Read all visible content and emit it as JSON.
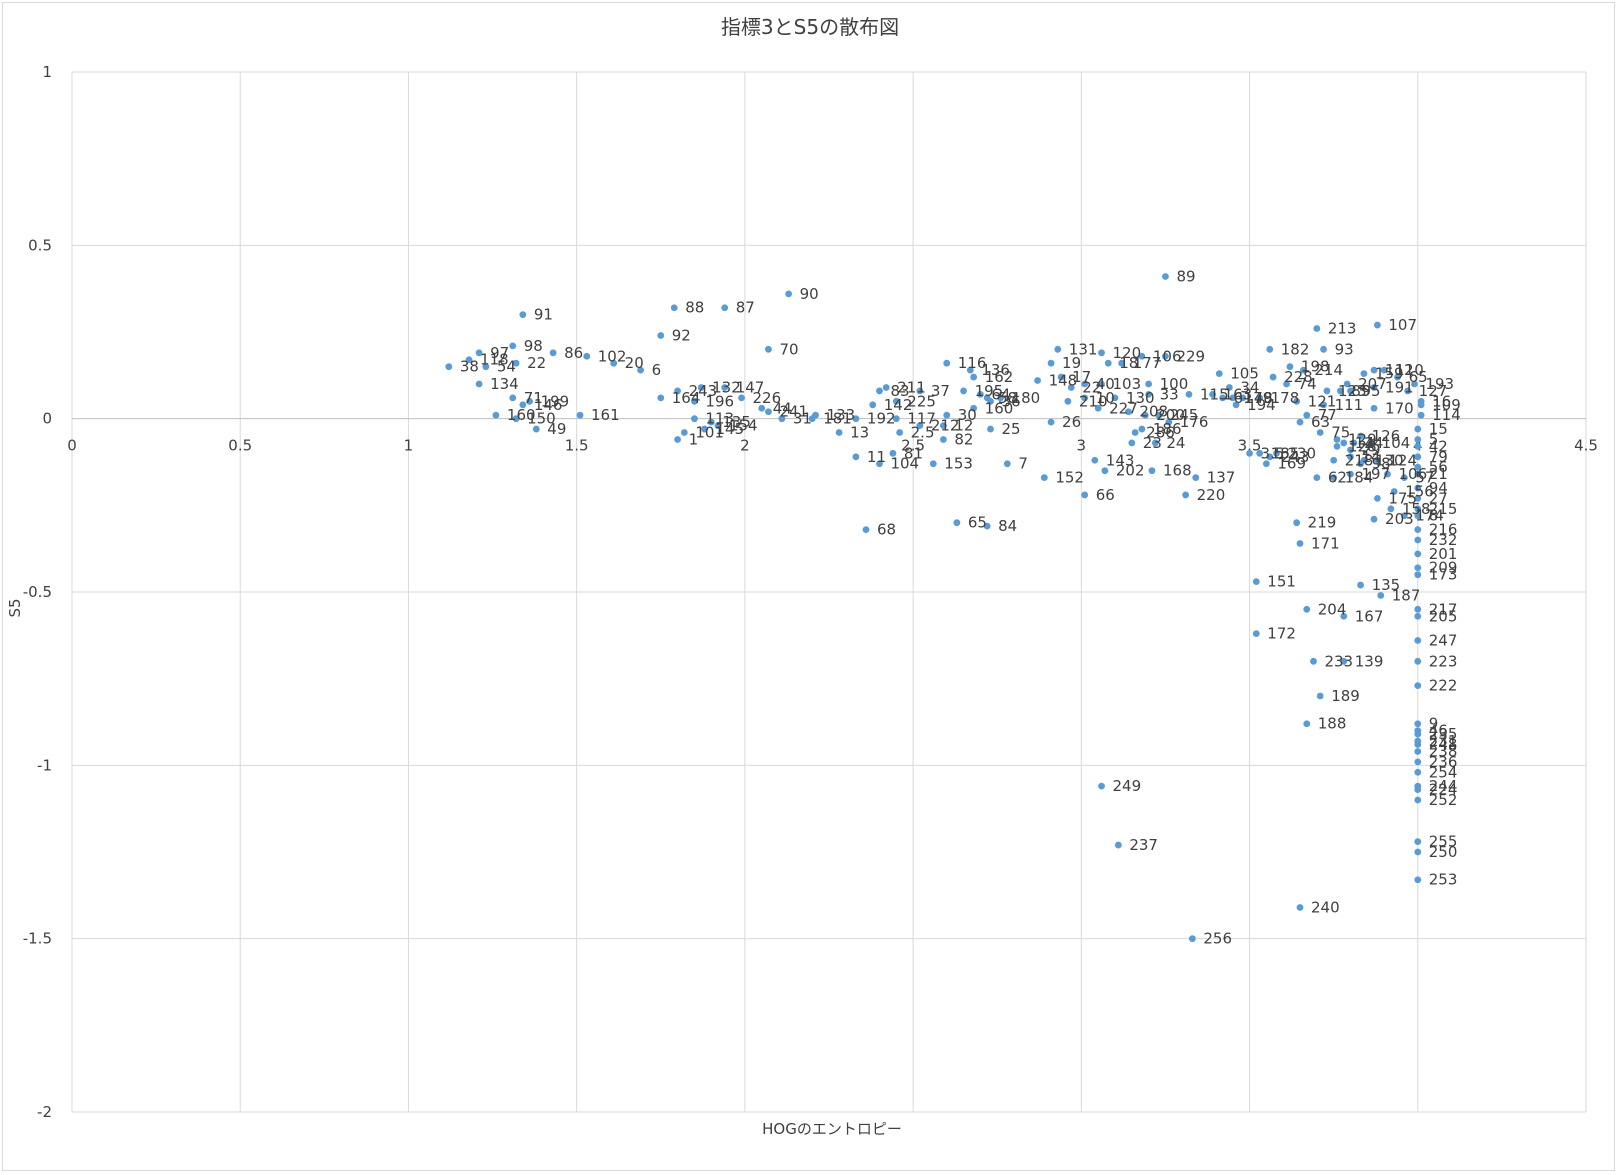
{
  "chart_data": {
    "type": "scatter",
    "title": "指標3とS5の散布図",
    "xlabel": "HOGのエントロピー",
    "ylabel": "S5",
    "xlim": [
      0,
      4.5
    ],
    "ylim": [
      -2,
      1
    ],
    "x_ticks": [
      "0",
      "0.5",
      "1",
      "1.5",
      "2",
      "2.5",
      "3",
      "3.5",
      "4",
      "4.5"
    ],
    "y_ticks": [
      "1",
      "0.5",
      "0",
      "-0.5",
      "-1",
      "-1.5",
      "-2"
    ],
    "grid": true,
    "legend": "none",
    "marker_color": "#5b9bd5",
    "points": [
      {
        "label": "91",
        "x": 1.34,
        "y": 0.3
      },
      {
        "label": "88",
        "x": 1.79,
        "y": 0.32
      },
      {
        "label": "87",
        "x": 1.94,
        "y": 0.32
      },
      {
        "label": "90",
        "x": 2.13,
        "y": 0.36
      },
      {
        "label": "89",
        "x": 3.25,
        "y": 0.41
      },
      {
        "label": "92",
        "x": 1.75,
        "y": 0.24
      },
      {
        "label": "70",
        "x": 2.07,
        "y": 0.2
      },
      {
        "label": "97",
        "x": 1.21,
        "y": 0.19
      },
      {
        "label": "98",
        "x": 1.31,
        "y": 0.21
      },
      {
        "label": "86",
        "x": 1.43,
        "y": 0.19
      },
      {
        "label": "102",
        "x": 1.53,
        "y": 0.18
      },
      {
        "label": "38",
        "x": 1.12,
        "y": 0.15
      },
      {
        "label": "118",
        "x": 1.18,
        "y": 0.17
      },
      {
        "label": "54",
        "x": 1.23,
        "y": 0.15
      },
      {
        "label": "22",
        "x": 1.32,
        "y": 0.16
      },
      {
        "label": "20",
        "x": 1.61,
        "y": 0.16
      },
      {
        "label": "6",
        "x": 1.69,
        "y": 0.14
      },
      {
        "label": "134",
        "x": 1.21,
        "y": 0.1
      },
      {
        "label": "71",
        "x": 1.31,
        "y": 0.06
      },
      {
        "label": "199",
        "x": 1.36,
        "y": 0.05
      },
      {
        "label": "146",
        "x": 1.34,
        "y": 0.04
      },
      {
        "label": "160",
        "x": 1.26,
        "y": 0.01
      },
      {
        "label": "150",
        "x": 1.32,
        "y": 0.0
      },
      {
        "label": "49",
        "x": 1.38,
        "y": -0.03
      },
      {
        "label": "161",
        "x": 1.51,
        "y": 0.01
      },
      {
        "label": "164",
        "x": 1.75,
        "y": 0.06
      },
      {
        "label": "243",
        "x": 1.8,
        "y": 0.08
      },
      {
        "label": "132",
        "x": 1.87,
        "y": 0.09
      },
      {
        "label": "147",
        "x": 1.94,
        "y": 0.09
      },
      {
        "label": "196",
        "x": 1.85,
        "y": 0.05
      },
      {
        "label": "226",
        "x": 1.99,
        "y": 0.06
      },
      {
        "label": "44",
        "x": 2.05,
        "y": 0.03
      },
      {
        "label": "241",
        "x": 2.07,
        "y": 0.02
      },
      {
        "label": "1",
        "x": 1.8,
        "y": -0.06
      },
      {
        "label": "101",
        "x": 1.82,
        "y": -0.04
      },
      {
        "label": "145",
        "x": 1.88,
        "y": -0.03
      },
      {
        "label": "113",
        "x": 1.85,
        "y": 0.0
      },
      {
        "label": "135",
        "x": 1.9,
        "y": -0.01
      },
      {
        "label": "154",
        "x": 1.92,
        "y": -0.02
      },
      {
        "label": "31",
        "x": 2.11,
        "y": 0.0
      },
      {
        "label": "181",
        "x": 2.2,
        "y": 0.0
      },
      {
        "label": "133",
        "x": 2.21,
        "y": 0.01
      },
      {
        "label": "13",
        "x": 2.28,
        "y": -0.04
      },
      {
        "label": "192",
        "x": 2.33,
        "y": 0.0
      },
      {
        "label": "117",
        "x": 2.45,
        "y": 0.0
      },
      {
        "label": "83",
        "x": 2.4,
        "y": 0.08
      },
      {
        "label": "211",
        "x": 2.42,
        "y": 0.09
      },
      {
        "label": "142",
        "x": 2.38,
        "y": 0.04
      },
      {
        "label": "225",
        "x": 2.45,
        "y": 0.05
      },
      {
        "label": "11",
        "x": 2.33,
        "y": -0.11
      },
      {
        "label": "81",
        "x": 2.44,
        "y": -0.1
      },
      {
        "label": "104",
        "x": 2.4,
        "y": -0.13
      },
      {
        "label": "2.5",
        "x": 2.46,
        "y": -0.04
      },
      {
        "label": "212",
        "x": 2.52,
        "y": -0.02
      },
      {
        "label": "12",
        "x": 2.59,
        "y": -0.02
      },
      {
        "label": "30",
        "x": 2.6,
        "y": 0.01
      },
      {
        "label": "82",
        "x": 2.59,
        "y": -0.06
      },
      {
        "label": "153",
        "x": 2.56,
        "y": -0.13
      },
      {
        "label": "116",
        "x": 2.6,
        "y": 0.16
      },
      {
        "label": "136",
        "x": 2.67,
        "y": 0.14
      },
      {
        "label": "162",
        "x": 2.68,
        "y": 0.12
      },
      {
        "label": "37",
        "x": 2.52,
        "y": 0.08
      },
      {
        "label": "195",
        "x": 2.65,
        "y": 0.08
      },
      {
        "label": "64",
        "x": 2.7,
        "y": 0.07
      },
      {
        "label": "58",
        "x": 2.72,
        "y": 0.06
      },
      {
        "label": "36",
        "x": 2.73,
        "y": 0.05
      },
      {
        "label": "180",
        "x": 2.76,
        "y": 0.06
      },
      {
        "label": "160",
        "x": 2.68,
        "y": 0.03
      },
      {
        "label": "25",
        "x": 2.73,
        "y": -0.03
      },
      {
        "label": "7",
        "x": 2.78,
        "y": -0.13
      },
      {
        "label": "68",
        "x": 2.36,
        "y": -0.32
      },
      {
        "label": "65",
        "x": 2.63,
        "y": -0.3
      },
      {
        "label": "84",
        "x": 2.72,
        "y": -0.31
      },
      {
        "label": "131",
        "x": 2.93,
        "y": 0.2
      },
      {
        "label": "120",
        "x": 3.06,
        "y": 0.19
      },
      {
        "label": "18",
        "x": 3.08,
        "y": 0.16
      },
      {
        "label": "177",
        "x": 3.12,
        "y": 0.16
      },
      {
        "label": "19",
        "x": 2.91,
        "y": 0.16
      },
      {
        "label": "17",
        "x": 2.94,
        "y": 0.12
      },
      {
        "label": "148",
        "x": 2.87,
        "y": 0.11
      },
      {
        "label": "22",
        "x": 2.97,
        "y": 0.09
      },
      {
        "label": "103",
        "x": 3.06,
        "y": 0.1
      },
      {
        "label": "40",
        "x": 3.01,
        "y": 0.1
      },
      {
        "label": "210",
        "x": 2.96,
        "y": 0.05
      },
      {
        "label": "10",
        "x": 3.01,
        "y": 0.06
      },
      {
        "label": "227",
        "x": 3.05,
        "y": 0.03
      },
      {
        "label": "130",
        "x": 3.1,
        "y": 0.06
      },
      {
        "label": "100",
        "x": 3.2,
        "y": 0.1
      },
      {
        "label": "33",
        "x": 3.2,
        "y": 0.07
      },
      {
        "label": "208",
        "x": 3.14,
        "y": 0.02
      },
      {
        "label": "200",
        "x": 3.19,
        "y": 0.01
      },
      {
        "label": "245",
        "x": 3.23,
        "y": 0.01
      },
      {
        "label": "26",
        "x": 2.91,
        "y": -0.01
      },
      {
        "label": "286",
        "x": 3.16,
        "y": -0.04
      },
      {
        "label": "186",
        "x": 3.18,
        "y": -0.03
      },
      {
        "label": "176",
        "x": 3.26,
        "y": -0.01
      },
      {
        "label": "23",
        "x": 3.15,
        "y": -0.07
      },
      {
        "label": "24",
        "x": 3.22,
        "y": -0.07
      },
      {
        "label": "143",
        "x": 3.04,
        "y": -0.12
      },
      {
        "label": "202",
        "x": 3.07,
        "y": -0.15
      },
      {
        "label": "168",
        "x": 3.21,
        "y": -0.15
      },
      {
        "label": "152",
        "x": 2.89,
        "y": -0.17
      },
      {
        "label": "66",
        "x": 3.01,
        "y": -0.22
      },
      {
        "label": "137",
        "x": 3.34,
        "y": -0.17
      },
      {
        "label": "220",
        "x": 3.31,
        "y": -0.22
      },
      {
        "label": "106",
        "x": 3.18,
        "y": 0.18
      },
      {
        "label": "229",
        "x": 3.25,
        "y": 0.18
      },
      {
        "label": "105",
        "x": 3.41,
        "y": 0.13
      },
      {
        "label": "34",
        "x": 3.44,
        "y": 0.09
      },
      {
        "label": "115",
        "x": 3.32,
        "y": 0.07
      },
      {
        "label": "163",
        "x": 3.39,
        "y": 0.07
      },
      {
        "label": "179",
        "x": 3.45,
        "y": 0.06
      },
      {
        "label": "48",
        "x": 3.48,
        "y": 0.06
      },
      {
        "label": "178",
        "x": 3.53,
        "y": 0.06
      },
      {
        "label": "194",
        "x": 3.46,
        "y": 0.04
      },
      {
        "label": "3.5",
        "x": 3.5,
        "y": -0.1
      },
      {
        "label": "185",
        "x": 3.53,
        "y": -0.1
      },
      {
        "label": "169",
        "x": 3.55,
        "y": -0.13
      },
      {
        "label": "230",
        "x": 3.58,
        "y": -0.1
      },
      {
        "label": "243",
        "x": 3.56,
        "y": -0.11
      },
      {
        "label": "182",
        "x": 3.56,
        "y": 0.2
      },
      {
        "label": "213",
        "x": 3.7,
        "y": 0.26
      },
      {
        "label": "93",
        "x": 3.72,
        "y": 0.2
      },
      {
        "label": "198",
        "x": 3.62,
        "y": 0.15
      },
      {
        "label": "214",
        "x": 3.66,
        "y": 0.14
      },
      {
        "label": "228",
        "x": 3.57,
        "y": 0.12
      },
      {
        "label": "74",
        "x": 3.61,
        "y": 0.1
      },
      {
        "label": "121",
        "x": 3.64,
        "y": 0.05
      },
      {
        "label": "77",
        "x": 3.67,
        "y": 0.01
      },
      {
        "label": "63",
        "x": 3.65,
        "y": -0.01
      },
      {
        "label": "111",
        "x": 3.72,
        "y": 0.04
      },
      {
        "label": "123",
        "x": 3.73,
        "y": 0.08
      },
      {
        "label": "85",
        "x": 3.77,
        "y": 0.08
      },
      {
        "label": "95",
        "x": 3.8,
        "y": 0.08
      },
      {
        "label": "207",
        "x": 3.79,
        "y": 0.1
      },
      {
        "label": "107",
        "x": 3.88,
        "y": 0.27
      },
      {
        "label": "159",
        "x": 3.84,
        "y": 0.13
      },
      {
        "label": "112",
        "x": 3.87,
        "y": 0.14
      },
      {
        "label": "110",
        "x": 3.9,
        "y": 0.14
      },
      {
        "label": "65",
        "x": 3.94,
        "y": 0.12
      },
      {
        "label": "193",
        "x": 3.99,
        "y": 0.1
      },
      {
        "label": "191",
        "x": 3.87,
        "y": 0.09
      },
      {
        "label": "127",
        "x": 3.97,
        "y": 0.08
      },
      {
        "label": "170",
        "x": 3.87,
        "y": 0.03
      },
      {
        "label": "16",
        "x": 4.01,
        "y": 0.05
      },
      {
        "label": "109",
        "x": 4.01,
        "y": 0.04
      },
      {
        "label": "114",
        "x": 4.01,
        "y": 0.01
      },
      {
        "label": "75",
        "x": 3.71,
        "y": -0.04
      },
      {
        "label": "129",
        "x": 3.76,
        "y": -0.06
      },
      {
        "label": "126",
        "x": 3.83,
        "y": -0.05
      },
      {
        "label": "4",
        "x": 3.81,
        "y": -0.07
      },
      {
        "label": "124",
        "x": 3.78,
        "y": -0.07
      },
      {
        "label": "104",
        "x": 3.86,
        "y": -0.07
      },
      {
        "label": "128",
        "x": 3.76,
        "y": -0.08
      },
      {
        "label": "29",
        "x": 3.8,
        "y": -0.09
      },
      {
        "label": "218",
        "x": 3.75,
        "y": -0.12
      },
      {
        "label": "14",
        "x": 3.8,
        "y": -0.11
      },
      {
        "label": "130",
        "x": 3.84,
        "y": -0.12
      },
      {
        "label": "124",
        "x": 3.88,
        "y": -0.12
      },
      {
        "label": "98",
        "x": 3.83,
        "y": -0.13
      },
      {
        "label": "62",
        "x": 3.7,
        "y": -0.17
      },
      {
        "label": "184",
        "x": 3.75,
        "y": -0.17
      },
      {
        "label": "197",
        "x": 3.8,
        "y": -0.16
      },
      {
        "label": "106",
        "x": 3.91,
        "y": -0.16
      },
      {
        "label": "57",
        "x": 3.96,
        "y": -0.17
      },
      {
        "label": "175",
        "x": 3.88,
        "y": -0.23
      },
      {
        "label": "156",
        "x": 3.93,
        "y": -0.21
      },
      {
        "label": "158",
        "x": 3.92,
        "y": -0.26
      },
      {
        "label": "174",
        "x": 3.96,
        "y": -0.28
      },
      {
        "label": "203",
        "x": 3.87,
        "y": -0.29
      },
      {
        "label": "15",
        "x": 4.0,
        "y": -0.03
      },
      {
        "label": "5",
        "x": 4.0,
        "y": -0.06
      },
      {
        "label": "42",
        "x": 4.0,
        "y": -0.08
      },
      {
        "label": "79",
        "x": 4.0,
        "y": -0.11
      },
      {
        "label": "56",
        "x": 4.0,
        "y": -0.14
      },
      {
        "label": "21",
        "x": 4.0,
        "y": -0.16
      },
      {
        "label": "94",
        "x": 4.0,
        "y": -0.2
      },
      {
        "label": "27",
        "x": 4.0,
        "y": -0.23
      },
      {
        "label": "215",
        "x": 4.0,
        "y": -0.26
      },
      {
        "label": "8",
        "x": 4.0,
        "y": -0.28
      },
      {
        "label": "216",
        "x": 4.0,
        "y": -0.32
      },
      {
        "label": "232",
        "x": 4.0,
        "y": -0.35
      },
      {
        "label": "201",
        "x": 4.0,
        "y": -0.39
      },
      {
        "label": "209",
        "x": 4.0,
        "y": -0.43
      },
      {
        "label": "173",
        "x": 4.0,
        "y": -0.45
      },
      {
        "label": "219",
        "x": 3.64,
        "y": -0.3
      },
      {
        "label": "171",
        "x": 3.65,
        "y": -0.36
      },
      {
        "label": "135",
        "x": 3.83,
        "y": -0.48
      },
      {
        "label": "187",
        "x": 3.89,
        "y": -0.51
      },
      {
        "label": "151",
        "x": 3.52,
        "y": -0.47
      },
      {
        "label": "204",
        "x": 3.67,
        "y": -0.55
      },
      {
        "label": "167",
        "x": 3.78,
        "y": -0.57
      },
      {
        "label": "172",
        "x": 3.52,
        "y": -0.62
      },
      {
        "label": "217",
        "x": 4.0,
        "y": -0.55
      },
      {
        "label": "205",
        "x": 4.0,
        "y": -0.57
      },
      {
        "label": "247",
        "x": 4.0,
        "y": -0.64
      },
      {
        "label": "223",
        "x": 4.0,
        "y": -0.7
      },
      {
        "label": "222",
        "x": 4.0,
        "y": -0.77
      },
      {
        "label": "233",
        "x": 3.69,
        "y": -0.7
      },
      {
        "label": "139",
        "x": 3.78,
        "y": -0.7
      },
      {
        "label": "189",
        "x": 3.71,
        "y": -0.8
      },
      {
        "label": "188",
        "x": 3.67,
        "y": -0.88
      },
      {
        "label": "9",
        "x": 4.0,
        "y": -0.88
      },
      {
        "label": "46",
        "x": 4.0,
        "y": -0.9
      },
      {
        "label": "235",
        "x": 4.0,
        "y": -0.91
      },
      {
        "label": "231",
        "x": 4.0,
        "y": -0.93
      },
      {
        "label": "248",
        "x": 4.0,
        "y": -0.94
      },
      {
        "label": "238",
        "x": 4.0,
        "y": -0.96
      },
      {
        "label": "236",
        "x": 4.0,
        "y": -0.99
      },
      {
        "label": "254",
        "x": 4.0,
        "y": -1.02
      },
      {
        "label": "224",
        "x": 4.0,
        "y": -1.07
      },
      {
        "label": "244",
        "x": 4.0,
        "y": -1.06
      },
      {
        "label": "252",
        "x": 4.0,
        "y": -1.1
      },
      {
        "label": "249",
        "x": 3.06,
        "y": -1.06
      },
      {
        "label": "237",
        "x": 3.11,
        "y": -1.23
      },
      {
        "label": "255",
        "x": 4.0,
        "y": -1.22
      },
      {
        "label": "250",
        "x": 4.0,
        "y": -1.25
      },
      {
        "label": "253",
        "x": 4.0,
        "y": -1.33
      },
      {
        "label": "240",
        "x": 3.65,
        "y": -1.41
      },
      {
        "label": "256",
        "x": 3.33,
        "y": -1.5
      },
      {
        "label": "61",
        "x": 3.42,
        "y": 0.06
      }
    ]
  }
}
